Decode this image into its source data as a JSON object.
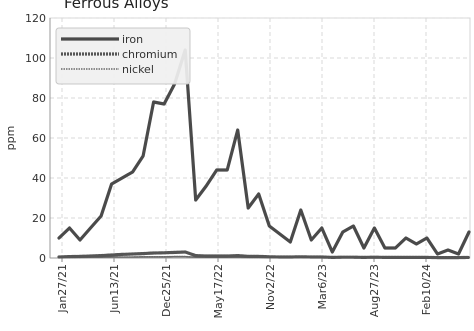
{
  "chart_data": {
    "type": "line",
    "title": "Ferrous Alloys",
    "xlabel": "",
    "ylabel": "ppm",
    "ylim": [
      0,
      120
    ],
    "yticks": [
      0,
      20,
      40,
      60,
      80,
      100,
      120
    ],
    "grid": true,
    "legend_position": "top-left",
    "x_tick_labels": [
      "Jan27/21",
      "Jun13/21",
      "Dec25/21",
      "May17/22",
      "Nov2/22",
      "Mar6/23",
      "Aug27/23",
      "Feb10/24"
    ],
    "series": [
      {
        "name": "iron",
        "color": "#4a4a4a",
        "style": "solid",
        "values": [
          10,
          15,
          9,
          15,
          21,
          37,
          40,
          43,
          51,
          78,
          77,
          87,
          104,
          29,
          36,
          44,
          44,
          64,
          25,
          32,
          16,
          12,
          8,
          24,
          9,
          15,
          3,
          13,
          16,
          5,
          15,
          5,
          5,
          10,
          7,
          10,
          2,
          4,
          2,
          13
        ]
      },
      {
        "name": "chromium",
        "color": "#555555",
        "style": "dashed",
        "values": [
          0.5,
          0.7,
          0.8,
          1.0,
          1.2,
          1.5,
          1.8,
          2.0,
          2.2,
          2.5,
          2.6,
          2.8,
          3.0,
          1.2,
          1.0,
          1.0,
          1.0,
          1.2,
          0.8,
          0.8,
          0.6,
          0.5,
          0.5,
          0.6,
          0.5,
          0.5,
          0.3,
          0.4,
          0.4,
          0.3,
          0.4,
          0.3,
          0.3,
          0.3,
          0.3,
          0.3,
          0.2,
          0.2,
          0.2,
          0.3
        ]
      },
      {
        "name": "nickel",
        "color": "#6a6a6a",
        "style": "dotted",
        "values": [
          0.3,
          0.3,
          0.3,
          0.4,
          0.4,
          0.5,
          0.5,
          0.5,
          0.6,
          0.6,
          0.6,
          0.7,
          0.7,
          0.4,
          0.4,
          0.4,
          0.4,
          0.4,
          0.3,
          0.3,
          0.3,
          0.3,
          0.3,
          0.3,
          0.3,
          0.3,
          0.2,
          0.2,
          0.2,
          0.2,
          0.2,
          0.2,
          0.2,
          0.2,
          0.2,
          0.2,
          0.1,
          0.1,
          0.1,
          0.2
        ]
      }
    ]
  }
}
